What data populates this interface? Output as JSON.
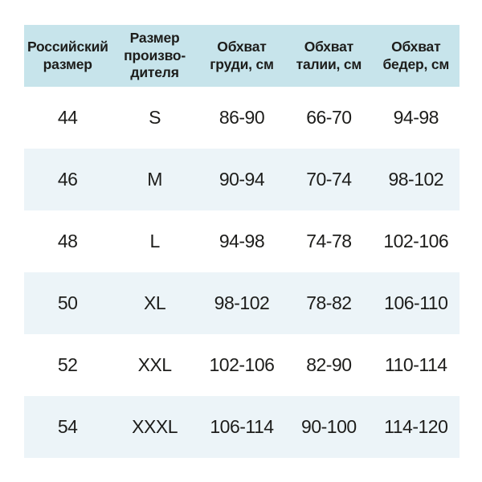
{
  "colors": {
    "header_bg": "#c7e4eb",
    "row_alt_bg": "#ecf4f8",
    "text": "#1d1d1b",
    "page_bg": "#ffffff"
  },
  "table": {
    "columns": [
      "Российский\nразмер",
      "Размер\nпроизво-\nдителя",
      "Обхват\nгруди, см",
      "Обхват\nталии, см",
      "Обхват\nбедер, см"
    ],
    "rows": [
      [
        "44",
        "S",
        "86-90",
        "66-70",
        "94-98"
      ],
      [
        "46",
        "M",
        "90-94",
        "70-74",
        "98-102"
      ],
      [
        "48",
        "L",
        "94-98",
        "74-78",
        "102-106"
      ],
      [
        "50",
        "XL",
        "98-102",
        "78-82",
        "106-110"
      ],
      [
        "52",
        "XXL",
        "102-106",
        "82-90",
        "110-114"
      ],
      [
        "54",
        "XXXL",
        "106-114",
        "90-100",
        "114-120"
      ]
    ]
  },
  "chart_data": {
    "type": "table",
    "title": "",
    "columns": [
      "Российский размер",
      "Размер производителя",
      "Обхват груди, см",
      "Обхват талии, см",
      "Обхват бедер, см"
    ],
    "rows": [
      [
        "44",
        "S",
        "86-90",
        "66-70",
        "94-98"
      ],
      [
        "46",
        "M",
        "90-94",
        "70-74",
        "98-102"
      ],
      [
        "48",
        "L",
        "94-98",
        "74-78",
        "102-106"
      ],
      [
        "50",
        "XL",
        "98-102",
        "78-82",
        "106-110"
      ],
      [
        "52",
        "XXL",
        "102-106",
        "82-90",
        "110-114"
      ],
      [
        "54",
        "XXXL",
        "106-114",
        "90-100",
        "114-120"
      ]
    ],
    "layout_hints": {
      "header_background": "#c7e4eb",
      "zebra_striping": true,
      "stripe_color": "#ecf4f8",
      "grid": false
    }
  }
}
